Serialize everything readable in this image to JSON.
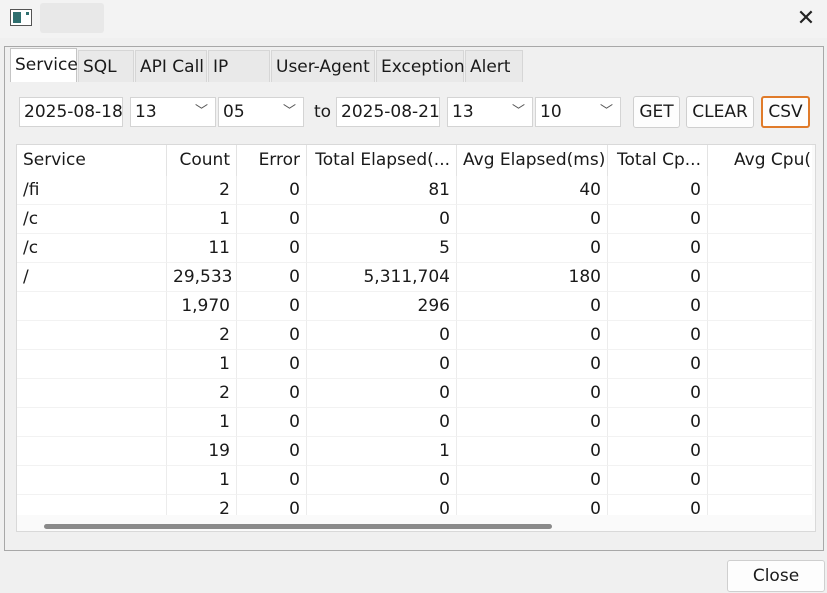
{
  "window": {
    "close_glyph": "✕"
  },
  "tabs": [
    "Service",
    "SQL",
    "API Call",
    "IP",
    "User-Agent",
    "Exception",
    "Alert"
  ],
  "filters": {
    "from_date": "2025-08-18",
    "from_hour": "13",
    "from_min": "05",
    "to_label": "to",
    "to_date": "2025-08-21",
    "to_hour": "13",
    "to_min": "10",
    "chevron": "﹀"
  },
  "buttons": {
    "get": "GET",
    "clear": "CLEAR",
    "csv": "CSV",
    "close": "Close"
  },
  "table": {
    "columns": [
      "Service",
      "Count",
      "Error",
      "Total Elapsed(...",
      "Avg Elapsed(ms)",
      "Total Cp...",
      "Avg Cpu("
    ],
    "rows": [
      [
        "/fi",
        "2",
        "0",
        "81",
        "40",
        "0",
        ""
      ],
      [
        "/c",
        "1",
        "0",
        "0",
        "0",
        "0",
        ""
      ],
      [
        "/c",
        "11",
        "0",
        "5",
        "0",
        "0",
        ""
      ],
      [
        "/",
        "29,533",
        "0",
        "5,311,704",
        "180",
        "0",
        ""
      ],
      [
        "",
        "1,970",
        "0",
        "296",
        "0",
        "0",
        ""
      ],
      [
        "",
        "2",
        "0",
        "0",
        "0",
        "0",
        ""
      ],
      [
        "",
        "1",
        "0",
        "0",
        "0",
        "0",
        ""
      ],
      [
        "",
        "2",
        "0",
        "0",
        "0",
        "0",
        ""
      ],
      [
        "",
        "1",
        "0",
        "0",
        "0",
        "0",
        ""
      ],
      [
        "",
        "19",
        "0",
        "1",
        "0",
        "0",
        ""
      ],
      [
        "",
        "1",
        "0",
        "0",
        "0",
        "0",
        ""
      ],
      [
        "",
        "2",
        "0",
        "0",
        "0",
        "0",
        ""
      ]
    ]
  }
}
